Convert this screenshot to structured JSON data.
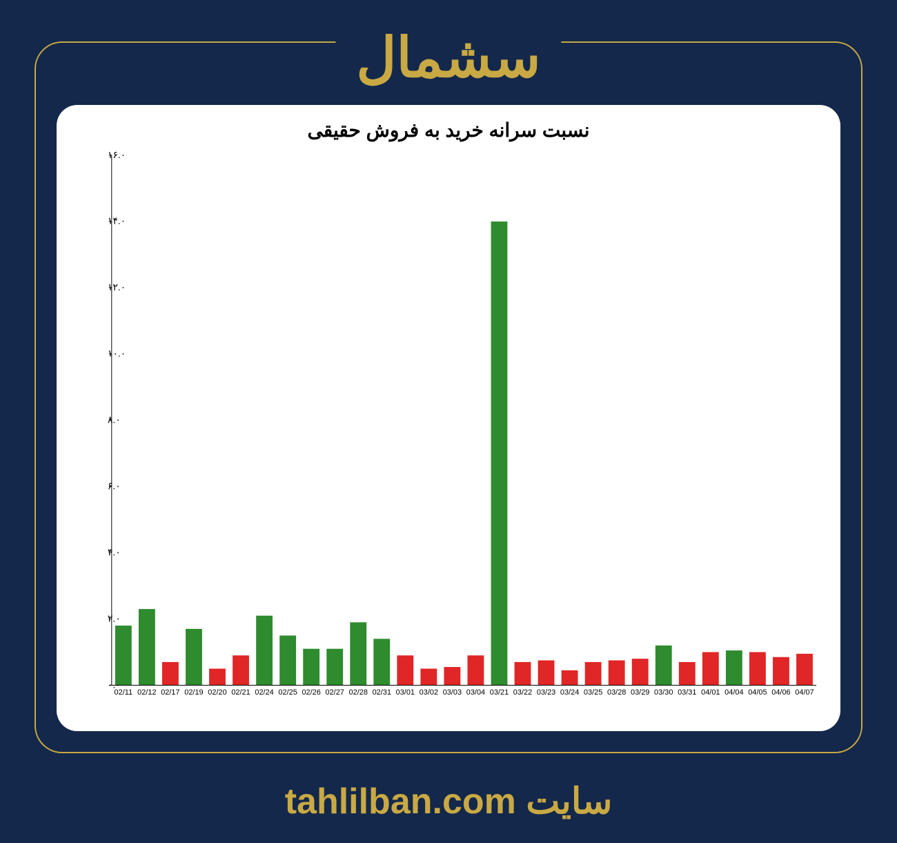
{
  "header": {
    "title": "سشمال"
  },
  "footer": {
    "prefix": "سایت",
    "url": "tahlilban.com"
  },
  "chart": {
    "type": "bar",
    "title": "نسبت سرانه خرید به فروش حقیقی",
    "title_fontsize": 28,
    "background_color": "#ffffff",
    "axis_color": "#000000",
    "ylim": [
      0,
      16
    ],
    "ytick_step": 2,
    "ytick_labels": [
      "۰.۰",
      "۲.۰",
      "۴.۰",
      "۶.۰",
      "۸.۰",
      "۱۰.۰",
      "۱۲.۰",
      "۱۴.۰",
      "۱۶.۰"
    ],
    "xtick_fontsize": 11,
    "ytick_fontsize": 14,
    "colors": {
      "green": "#2e8b2e",
      "red": "#e02626"
    },
    "bar_width": 0.7,
    "categories": [
      "02/11",
      "02/12",
      "02/17",
      "02/19",
      "02/20",
      "02/21",
      "02/24",
      "02/25",
      "02/26",
      "02/27",
      "02/28",
      "02/31",
      "03/01",
      "03/02",
      "03/03",
      "03/04",
      "03/21",
      "03/22",
      "03/23",
      "03/24",
      "03/25",
      "03/28",
      "03/29",
      "03/30",
      "03/31",
      "04/01",
      "04/04",
      "04/05",
      "04/06",
      "04/07"
    ],
    "values": [
      1.8,
      2.3,
      0.7,
      1.7,
      0.5,
      0.9,
      2.1,
      1.5,
      1.1,
      1.1,
      1.9,
      1.4,
      0.9,
      0.5,
      0.55,
      0.9,
      14.0,
      0.7,
      0.75,
      0.45,
      0.7,
      0.75,
      0.8,
      1.2,
      0.7,
      1.0,
      1.05,
      1.0,
      0.85,
      0.95
    ],
    "bar_colors": [
      "green",
      "green",
      "red",
      "green",
      "red",
      "red",
      "green",
      "green",
      "green",
      "green",
      "green",
      "green",
      "red",
      "red",
      "red",
      "red",
      "green",
      "red",
      "red",
      "red",
      "red",
      "red",
      "red",
      "green",
      "red",
      "red",
      "green",
      "red",
      "red",
      "red"
    ]
  }
}
